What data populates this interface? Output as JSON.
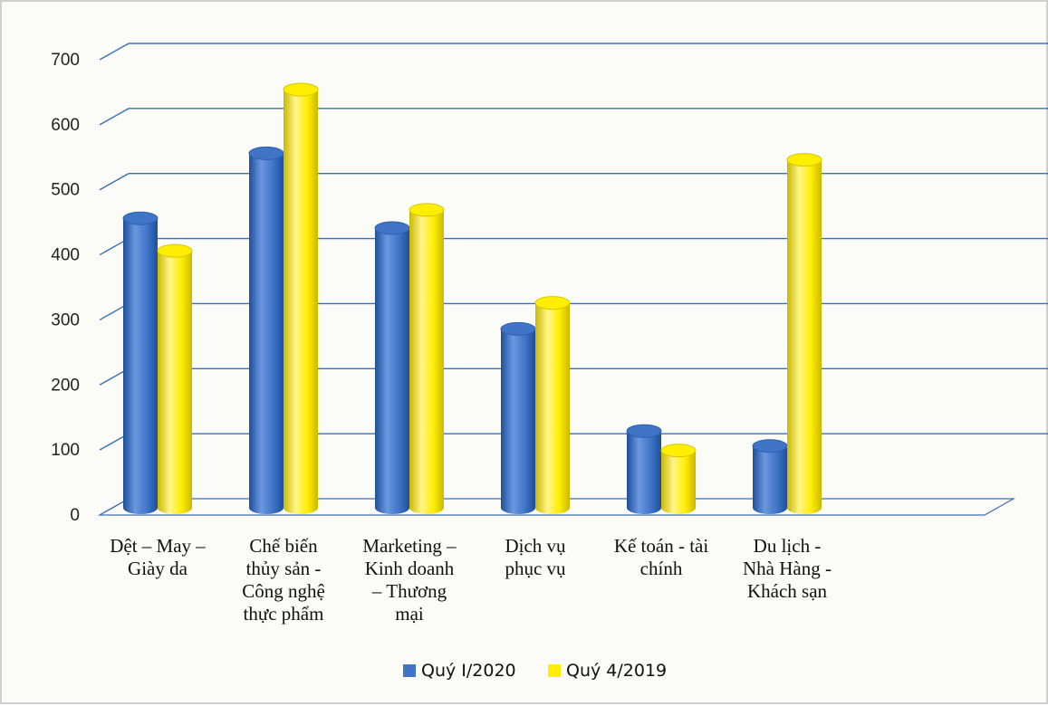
{
  "chart_data": {
    "type": "bar",
    "three_d": true,
    "categories": [
      [
        "Dệt – May –",
        "Giày da"
      ],
      [
        "Chế biến",
        "thủy sản -",
        "Công nghệ",
        "thực phẩm"
      ],
      [
        "Marketing –",
        "Kinh doanh",
        "– Thương",
        "mại"
      ],
      [
        "Dịch vụ",
        "phục vụ"
      ],
      [
        "Kế toán - tài",
        "chính"
      ],
      [
        "Du lịch -",
        "Nhà Hàng -",
        "Khách sạn"
      ]
    ],
    "series": [
      {
        "name": "Quý I/2020",
        "color": "#3f74c7",
        "values": [
          445,
          545,
          430,
          275,
          118,
          95
        ]
      },
      {
        "name": "Quý 4/2019",
        "color": "#ffee00",
        "values": [
          395,
          643,
          458,
          315,
          88,
          535
        ]
      }
    ],
    "ylim": [
      0,
      700
    ],
    "yticks": [
      "0",
      "100",
      "200",
      "300",
      "400",
      "500",
      "600",
      "700"
    ],
    "grid": true,
    "gridline_color": "#3a6fb4",
    "legend_position": "bottom"
  }
}
